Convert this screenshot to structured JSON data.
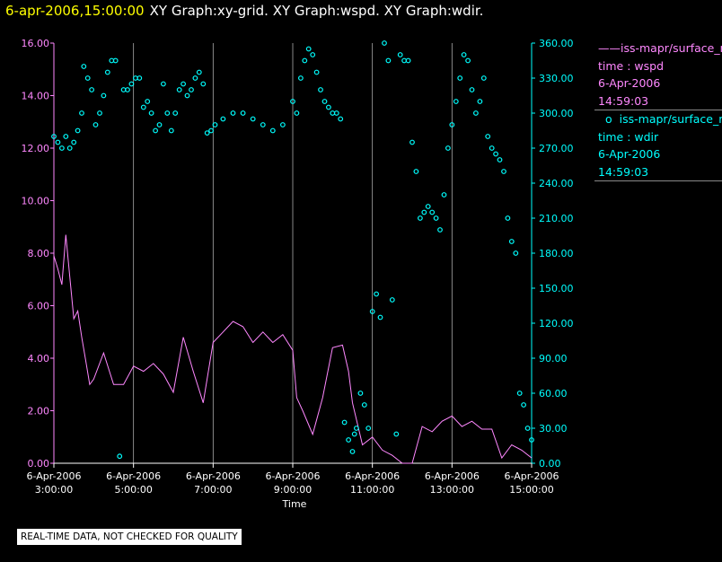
{
  "header": {
    "timestamp": "6-apr-2006,15:00:00",
    "graphs": "XY Graph:xy-grid.  XY Graph:wspd.  XY Graph:wdir."
  },
  "colors": {
    "wspd": "#ff88ff",
    "wdir": "#00ffff",
    "axis_left": "#ff88ff",
    "axis_right": "#00ffff",
    "grid": "#aaaaaa",
    "background": "#000000"
  },
  "legend": [
    {
      "marker": "——",
      "series": "iss-mapr/surface_m",
      "var_line": "time : wspd",
      "date": "6-Apr-2006",
      "time": "14:59:03",
      "color": "#ff88ff"
    },
    {
      "marker": "o",
      "series": "iss-mapr/surface_m",
      "var_line": "time : wdir",
      "date": "6-Apr-2006",
      "time": "14:59:03",
      "color": "#00ffff"
    }
  ],
  "disclaimer": "REAL-TIME DATA, NOT CHECKED FOR QUALITY",
  "chart_data": {
    "type": "line",
    "xlabel": "Time",
    "xlim": [
      "6-Apr-2006 03:00:00",
      "6-Apr-2006 15:00:00"
    ],
    "x_ticks": [
      {
        "date": "6-Apr-2006",
        "time": "3:00:00",
        "h": 3
      },
      {
        "date": "6-Apr-2006",
        "time": "5:00:00",
        "h": 5
      },
      {
        "date": "6-Apr-2006",
        "time": "7:00:00",
        "h": 7
      },
      {
        "date": "6-Apr-2006",
        "time": "9:00:00",
        "h": 9
      },
      {
        "date": "6-Apr-2006",
        "time": "11:00:00",
        "h": 11
      },
      {
        "date": "6-Apr-2006",
        "time": "13:00:00",
        "h": 13
      },
      {
        "date": "6-Apr-2006",
        "time": "15:00:00",
        "h": 15
      }
    ],
    "y_left": {
      "ylim": [
        0,
        16
      ],
      "ticks": [
        "0.00",
        "2.00",
        "4.00",
        "6.00",
        "8.00",
        "10.00",
        "12.00",
        "14.00",
        "16.00"
      ]
    },
    "y_right": {
      "ylim": [
        0,
        360
      ],
      "ticks": [
        "0.00",
        "30.00",
        "60.00",
        "90.00",
        "120.00",
        "150.00",
        "180.00",
        "210.00",
        "240.00",
        "270.00",
        "300.00",
        "330.00",
        "360.00"
      ]
    },
    "grid": "vertical lines at each x tick",
    "series": [
      {
        "name": "time : wspd",
        "axis": "left",
        "style": "line",
        "x_hours": [
          3,
          3.1,
          3.2,
          3.3,
          3.4,
          3.5,
          3.6,
          3.7,
          3.8,
          3.9,
          4,
          4.25,
          4.5,
          4.75,
          5,
          5.25,
          5.5,
          5.75,
          6,
          6.25,
          6.5,
          6.75,
          7,
          7.25,
          7.5,
          7.75,
          8,
          8.25,
          8.5,
          8.75,
          9,
          9.1,
          9.25,
          9.5,
          9.75,
          10,
          10.25,
          10.4,
          10.5,
          10.75,
          11,
          11.25,
          11.5,
          11.75,
          12,
          12.25,
          12.5,
          12.75,
          13,
          13.25,
          13.5,
          13.75,
          14,
          14.25,
          14.5,
          14.75,
          15
        ],
        "values": [
          7.9,
          7.4,
          6.8,
          8.7,
          7.1,
          5.5,
          5.8,
          4.8,
          3.9,
          3.0,
          3.2,
          4.2,
          3.0,
          3.0,
          3.7,
          3.5,
          3.8,
          3.4,
          2.7,
          4.8,
          3.5,
          2.3,
          4.6,
          5.0,
          5.4,
          5.2,
          4.6,
          5.0,
          4.6,
          4.9,
          4.3,
          2.5,
          2.0,
          1.1,
          2.5,
          4.4,
          4.5,
          3.5,
          2.3,
          0.7,
          1.0,
          0.5,
          0.3,
          0.0,
          0.0,
          1.4,
          1.2,
          1.6,
          1.8,
          1.4,
          1.6,
          1.3,
          1.3,
          0.2,
          0.7,
          0.5,
          0.2
        ]
      },
      {
        "name": "time : wdir",
        "axis": "right",
        "style": "points",
        "x_hours": [
          3,
          3.1,
          3.2,
          3.3,
          3.4,
          3.5,
          3.6,
          3.7,
          3.75,
          3.85,
          3.95,
          4.05,
          4.15,
          4.25,
          4.35,
          4.45,
          4.55,
          4.65,
          4.75,
          4.85,
          4.95,
          5.05,
          5.15,
          5.25,
          5.35,
          5.45,
          5.55,
          5.65,
          5.75,
          5.85,
          5.95,
          6.05,
          6.15,
          6.25,
          6.35,
          6.45,
          6.55,
          6.65,
          6.75,
          6.85,
          6.95,
          7.05,
          7.25,
          7.5,
          7.75,
          8,
          8.25,
          8.5,
          8.75,
          9,
          9.1,
          9.2,
          9.3,
          9.4,
          9.5,
          9.6,
          9.7,
          9.8,
          9.9,
          10,
          10.1,
          10.2,
          10.3,
          10.4,
          10.5,
          10.55,
          10.6,
          10.7,
          10.8,
          10.9,
          11,
          11.1,
          11.2,
          11.3,
          11.4,
          11.5,
          11.6,
          11.7,
          11.8,
          11.9,
          12,
          12.1,
          12.2,
          12.3,
          12.4,
          12.5,
          12.6,
          12.7,
          12.8,
          12.9,
          13,
          13.1,
          13.2,
          13.3,
          13.4,
          13.5,
          13.6,
          13.7,
          13.8,
          13.9,
          14,
          14.1,
          14.2,
          14.3,
          14.4,
          14.5,
          14.6,
          14.7,
          14.8,
          14.9,
          15
        ],
        "values": [
          280,
          275,
          270,
          280,
          270,
          275,
          285,
          300,
          340,
          330,
          320,
          290,
          300,
          315,
          335,
          345,
          345,
          6,
          320,
          320,
          325,
          330,
          330,
          305,
          310,
          300,
          285,
          290,
          325,
          300,
          285,
          300,
          320,
          325,
          315,
          320,
          330,
          335,
          325,
          283,
          285,
          290,
          295,
          300,
          300,
          295,
          290,
          285,
          290,
          310,
          300,
          330,
          345,
          355,
          350,
          335,
          320,
          310,
          305,
          300,
          300,
          295,
          35,
          20,
          10,
          25,
          30,
          60,
          50,
          30,
          130,
          145,
          125,
          360,
          345,
          140,
          25,
          350,
          345,
          345,
          275,
          250,
          210,
          215,
          220,
          215,
          210,
          200,
          230,
          270,
          290,
          310,
          330,
          350,
          345,
          320,
          300,
          310,
          330,
          280,
          270,
          265,
          260,
          250,
          210,
          190,
          180,
          60,
          50,
          30,
          20
        ]
      }
    ]
  }
}
